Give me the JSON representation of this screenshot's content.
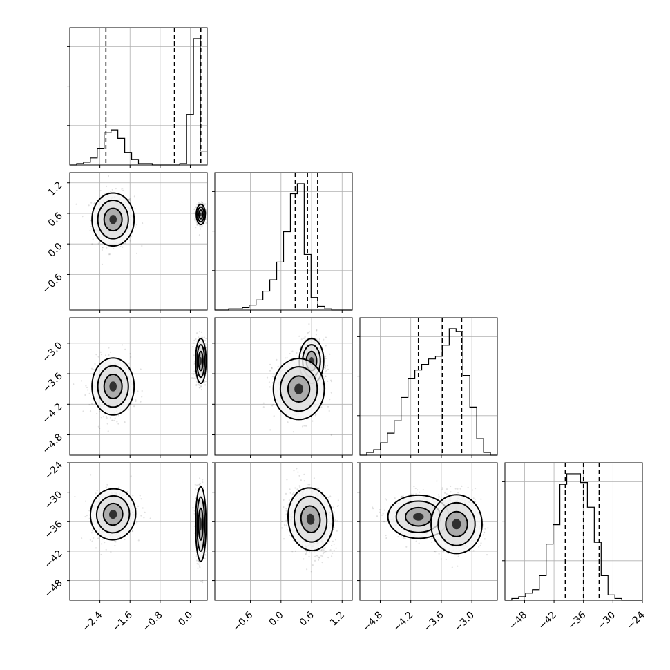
{
  "chart_data": {
    "type": "corner",
    "title": "",
    "parameters": [
      {
        "name": "",
        "range": [
          -3.2,
          0.45
        ],
        "ticks": [
          -2.4,
          -1.6,
          -0.8,
          0.0
        ],
        "tick_labels": [
          "−2.4",
          "−1.6",
          "−0.8",
          "0.0"
        ]
      },
      {
        "name": "",
        "range": [
          -1.3,
          1.4
        ],
        "ticks": [
          -0.6,
          0.0,
          0.6,
          1.2
        ],
        "tick_labels": [
          "−0.6",
          "0.0",
          "0.6",
          "1.2"
        ]
      },
      {
        "name": "",
        "range": [
          -5.2,
          -2.5
        ],
        "ticks": [
          -4.8,
          -4.2,
          -3.6,
          -3.0
        ],
        "tick_labels": [
          "−4.8",
          "−4.2",
          "−3.6",
          "−3.0"
        ]
      },
      {
        "name": "",
        "range": [
          -52,
          -24
        ],
        "ticks": [
          -48,
          -42,
          -36,
          -30,
          -24
        ],
        "tick_labels": [
          "−48",
          "−42",
          "−36",
          "−30",
          "−24"
        ]
      }
    ],
    "histograms": [
      {
        "bins_min": -3.2,
        "bins_max": 0.45,
        "counts": [
          0,
          1,
          2,
          5,
          12,
          23,
          25,
          19,
          9,
          4,
          1,
          1,
          0,
          0,
          0,
          0,
          1,
          36,
          90,
          10
        ],
        "quantiles": [
          -2.24,
          -0.42,
          0.28
        ]
      },
      {
        "bins_min": -1.3,
        "bins_max": 1.4,
        "counts": [
          0,
          0,
          1,
          1,
          2,
          4,
          8,
          15,
          24,
          38,
          62,
          92,
          100,
          44,
          10,
          3,
          1,
          0,
          0,
          0
        ],
        "quantiles": [
          0.28,
          0.52,
          0.72
        ]
      },
      {
        "bins_min": -5.2,
        "bins_max": -2.5,
        "counts": [
          0,
          2,
          4,
          9,
          16,
          25,
          42,
          56,
          62,
          66,
          70,
          72,
          80,
          92,
          90,
          58,
          35,
          12,
          2,
          0
        ],
        "quantiles": [
          -4.05,
          -3.58,
          -3.2
        ]
      },
      {
        "bins_min": -52,
        "bins_max": -24,
        "counts": [
          0,
          1,
          2,
          4,
          6,
          14,
          32,
          43,
          66,
          72,
          72,
          67,
          53,
          33,
          14,
          3,
          1,
          0,
          0,
          0
        ],
        "quantiles": [
          -39.7,
          -36.0,
          -32.8
        ]
      }
    ],
    "pairs": [
      {
        "x": 0,
        "y": 1,
        "modes": [
          {
            "cx": -2.05,
            "cy": 0.48,
            "sx": 0.28,
            "sy": 0.26,
            "rho": 0.0,
            "w": 0.45
          },
          {
            "cx": 0.28,
            "cy": 0.58,
            "sx": 0.06,
            "sy": 0.1,
            "rho": 0.0,
            "w": 0.55
          }
        ]
      },
      {
        "x": 0,
        "y": 2,
        "modes": [
          {
            "cx": -2.05,
            "cy": -3.85,
            "sx": 0.28,
            "sy": 0.28,
            "rho": 0.0,
            "w": 0.45
          },
          {
            "cx": 0.28,
            "cy": -3.35,
            "sx": 0.07,
            "sy": 0.22,
            "rho": 0.0,
            "w": 0.55
          }
        ]
      },
      {
        "x": 0,
        "y": 3,
        "modes": [
          {
            "cx": -2.05,
            "cy": -34.5,
            "sx": 0.3,
            "sy": 2.6,
            "rho": 0.2,
            "w": 0.45
          },
          {
            "cx": 0.28,
            "cy": -36.5,
            "sx": 0.07,
            "sy": 3.8,
            "rho": 0.0,
            "w": 0.55
          }
        ]
      },
      {
        "x": 1,
        "y": 2,
        "modes": [
          {
            "cx": 0.6,
            "cy": -3.35,
            "sx": 0.12,
            "sy": 0.22,
            "rho": 0.0,
            "w": 0.55
          },
          {
            "cx": 0.35,
            "cy": -3.9,
            "sx": 0.25,
            "sy": 0.3,
            "rho": 0.0,
            "w": 0.45
          }
        ]
      },
      {
        "x": 1,
        "y": 3,
        "modes": [
          {
            "cx": 0.58,
            "cy": -35.5,
            "sx": 0.22,
            "sy": 3.2,
            "rho": -0.2,
            "w": 1.0
          }
        ]
      },
      {
        "x": 2,
        "y": 3,
        "modes": [
          {
            "cx": -4.05,
            "cy": -35.0,
            "sx": 0.3,
            "sy": 2.2,
            "rho": 0.0,
            "w": 0.45
          },
          {
            "cx": -3.3,
            "cy": -36.5,
            "sx": 0.25,
            "sy": 3.0,
            "rho": 0.0,
            "w": 0.55
          }
        ]
      }
    ]
  }
}
